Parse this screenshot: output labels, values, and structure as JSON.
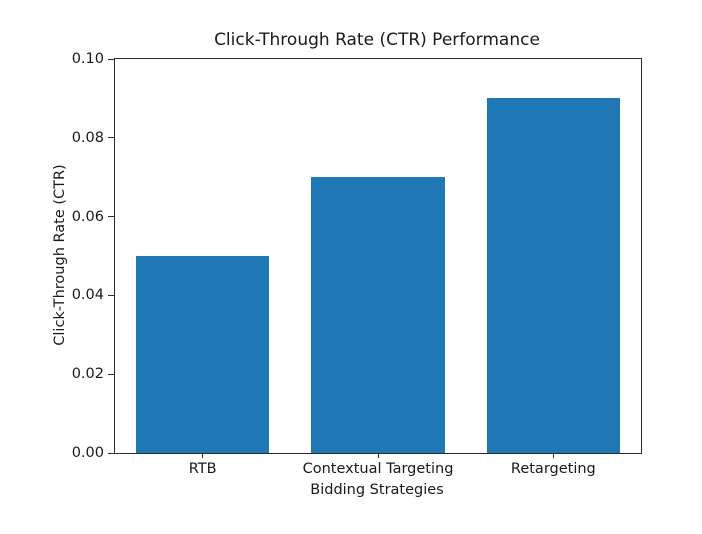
{
  "chart_data": {
    "type": "bar",
    "title": "Click-Through Rate (CTR) Performance",
    "xlabel": "Bidding Strategies",
    "ylabel": "Click-Through Rate (CTR)",
    "categories": [
      "RTB",
      "Contextual Targeting",
      "Retargeting"
    ],
    "values": [
      0.05,
      0.07,
      0.09
    ],
    "ylim": [
      0.0,
      0.1
    ],
    "yticks": [
      0.0,
      0.02,
      0.04,
      0.06,
      0.08,
      0.1
    ],
    "ytick_labels": [
      "0.00",
      "0.02",
      "0.04",
      "0.06",
      "0.08",
      "0.10"
    ],
    "bar_width_fraction": 0.76,
    "bar_color": "#1f77b4",
    "background_color": "#ffffff",
    "grid": false,
    "legend": null
  }
}
